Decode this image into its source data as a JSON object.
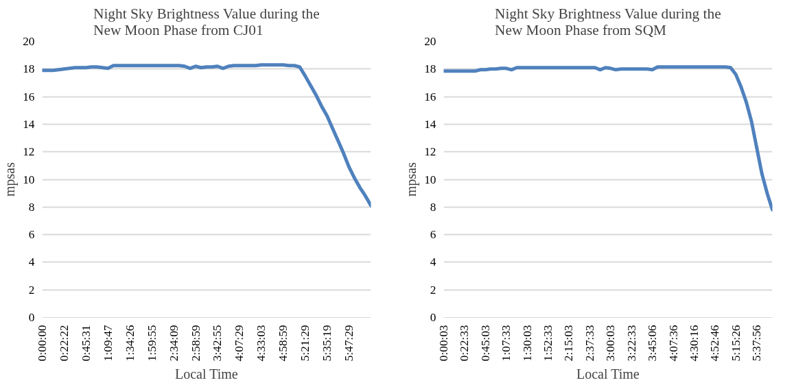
{
  "chart_data": [
    {
      "type": "line",
      "title": "Night Sky Brightness Value during the New Moon Phase from CJ01",
      "xlabel": "Local Time",
      "ylabel": "mpsas",
      "ylim": [
        0,
        20
      ],
      "yticks": [
        0,
        2,
        4,
        6,
        8,
        10,
        12,
        14,
        16,
        18,
        20
      ],
      "grid": "y",
      "categories": [
        "0:00:00",
        null,
        null,
        null,
        "0:22:22",
        null,
        null,
        null,
        "0:45:31",
        null,
        null,
        null,
        "1:09:47",
        null,
        null,
        null,
        "1:34:26",
        null,
        null,
        null,
        "1:59:55",
        null,
        null,
        null,
        "2:34:09",
        null,
        null,
        null,
        "2:58:59",
        null,
        null,
        null,
        "3:42:55",
        null,
        null,
        null,
        "4:07:29",
        null,
        null,
        null,
        "4:33:03",
        null,
        null,
        null,
        "4:58:59",
        null,
        null,
        null,
        "5:21:29",
        null,
        null,
        null,
        "5:35:19",
        null,
        null,
        null,
        "5:47:29",
        null,
        null,
        null,
        null
      ],
      "series": [
        {
          "color": "#4f81bd",
          "values": [
            17.9,
            17.9,
            17.9,
            17.95,
            18.0,
            18.05,
            18.1,
            18.1,
            18.1,
            18.15,
            18.15,
            18.1,
            18.05,
            18.25,
            18.25,
            18.25,
            18.25,
            18.25,
            18.25,
            18.25,
            18.25,
            18.25,
            18.25,
            18.25,
            18.25,
            18.25,
            18.2,
            18.05,
            18.2,
            18.1,
            18.15,
            18.15,
            18.2,
            18.05,
            18.2,
            18.25,
            18.25,
            18.25,
            18.25,
            18.25,
            18.3,
            18.3,
            18.3,
            18.3,
            18.3,
            18.25,
            18.25,
            18.15,
            17.5,
            16.8,
            16.1,
            15.3,
            14.6,
            13.7,
            12.8,
            11.9,
            10.9,
            10.1,
            9.4,
            8.8,
            8.1
          ]
        }
      ]
    },
    {
      "type": "line",
      "title": "Night Sky Brightness Value during the New Moon Phase from SQM",
      "xlabel": "Local Time",
      "ylabel": "mpsas",
      "ylim": [
        0,
        20
      ],
      "yticks": [
        0,
        2,
        4,
        6,
        8,
        10,
        12,
        14,
        16,
        18,
        20
      ],
      "grid": "y",
      "categories": [
        "0:00:03",
        null,
        null,
        null,
        "0:22:33",
        null,
        null,
        null,
        "0:45:03",
        null,
        null,
        null,
        "1:07:33",
        null,
        null,
        null,
        "1:30:03",
        null,
        null,
        null,
        "1:52:33",
        null,
        null,
        null,
        "2:15:03",
        null,
        null,
        null,
        "2:37:33",
        null,
        null,
        null,
        "3:00:03",
        null,
        null,
        null,
        "3:22:33",
        null,
        null,
        null,
        "3:45:06",
        null,
        null,
        null,
        "4:07:36",
        null,
        null,
        null,
        "4:30:16",
        null,
        null,
        null,
        "4:52:46",
        null,
        null,
        null,
        "5:15:26",
        null,
        null,
        null,
        "5:37:56",
        null,
        null,
        null
      ],
      "series": [
        {
          "color": "#4f81bd",
          "values": [
            17.85,
            17.85,
            17.85,
            17.85,
            17.85,
            17.85,
            17.85,
            17.95,
            17.95,
            18.0,
            18.0,
            18.05,
            18.05,
            17.95,
            18.1,
            18.1,
            18.1,
            18.1,
            18.1,
            18.1,
            18.1,
            18.1,
            18.1,
            18.1,
            18.1,
            18.1,
            18.1,
            18.1,
            18.1,
            18.1,
            17.95,
            18.1,
            18.05,
            17.95,
            18.0,
            18.0,
            18.0,
            18.0,
            18.0,
            18.0,
            17.95,
            18.15,
            18.15,
            18.15,
            18.15,
            18.15,
            18.15,
            18.15,
            18.15,
            18.15,
            18.15,
            18.15,
            18.15,
            18.15,
            18.15,
            18.1,
            17.6,
            16.7,
            15.6,
            14.2,
            12.3,
            10.4,
            9.0,
            7.8
          ]
        }
      ]
    }
  ]
}
